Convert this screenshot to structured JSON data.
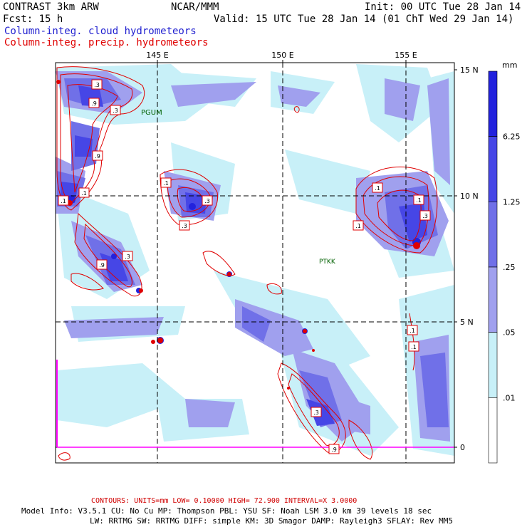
{
  "header": {
    "model": "CONTRAST  3km ARW",
    "org": "NCAR/MMM",
    "init": "Init: 00 UTC Tue 28 Jan 14",
    "fcst": "Fcst:   15 h",
    "valid": "Valid: 15 UTC Tue 28 Jan 14 (01 ChT Wed 29 Jan 14)",
    "field1": "Column-integ. cloud hydrometeors",
    "field2": "Column-integ. precip. hydrometeors"
  },
  "colors": {
    "field1_text": "#2020d0",
    "field2_text": "#e00000",
    "contour": "#e00000",
    "grid": "#000000",
    "station": "#006000",
    "boundary": "#ff00ff"
  },
  "map": {
    "lon_labels": [
      "145 E",
      "150 E",
      "155 E"
    ],
    "lat_labels": [
      "15 N",
      "10 N",
      "5 N",
      "0"
    ],
    "stations": [
      "PGUM",
      "PTKK"
    ],
    "contour_labels": [
      ".3",
      ".9",
      ".3",
      ".9",
      ".1",
      ".1",
      ".3",
      ".1",
      ".3",
      ".9",
      ".3",
      ".1",
      ".1",
      ".1",
      ".3",
      ".1",
      ".1",
      ".3",
      ".9"
    ]
  },
  "colorbar": {
    "units": "mm",
    "levels": [
      "6.25",
      "1.25",
      ".25",
      ".05",
      ".01"
    ],
    "colors": [
      "#2222dd",
      "#4646e6",
      "#7070e8",
      "#a0a0ee",
      "#c8f0f8",
      "#ffffff"
    ]
  },
  "footer": {
    "contours": "CONTOURS:  UNITS=mm  LOW= 0.10000     HIGH= 72.900     INTERVAL=X  3.0000",
    "line1": "Model Info: V3.5.1    CU: No Cu    MP: Thompson    PBL: YSU     SF: Noah LSM     3.0 km   39 levels   18 sec",
    "line2": "LW: RRTMG   SW: RRTMG  DIFF: simple KM: 3D Smagor DAMP: Rayleigh3  SFLAY: Rev MM5"
  }
}
